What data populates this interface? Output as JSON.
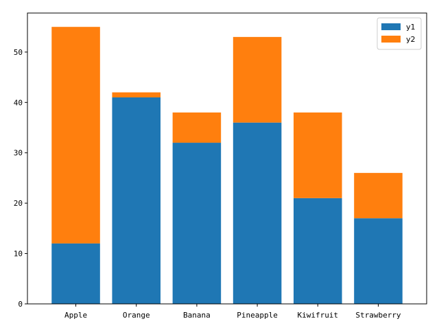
{
  "chart_data": {
    "type": "bar",
    "stacked": true,
    "categories": [
      "Apple",
      "Orange",
      "Banana",
      "Pineapple",
      "Kiwifruit",
      "Strawberry"
    ],
    "series": [
      {
        "name": "y1",
        "color": "#1f77b4",
        "values": [
          12,
          41,
          32,
          36,
          21,
          17
        ]
      },
      {
        "name": "y2",
        "color": "#ff7f0e",
        "values": [
          43,
          1,
          6,
          17,
          17,
          9
        ]
      }
    ],
    "ylim": [
      0,
      57.75
    ],
    "yticks": [
      0,
      10,
      20,
      30,
      40,
      50
    ],
    "grid": false,
    "legend_position": "top-right"
  }
}
